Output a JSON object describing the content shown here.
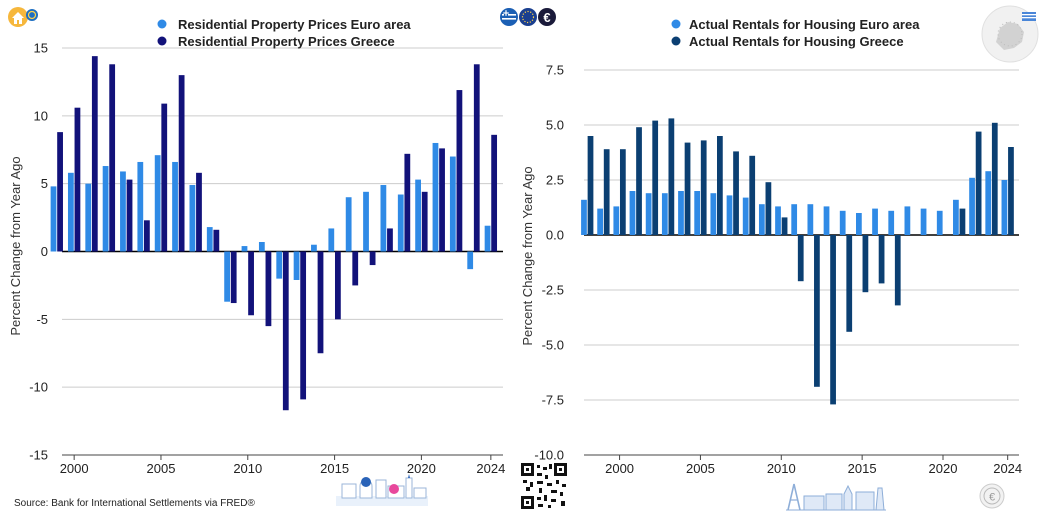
{
  "footer": {
    "source": "Source: Bank for International Settlements via FRED®"
  },
  "colors": {
    "light_blue": "#2f8ae6",
    "navy": "#12127a",
    "dark_blue": "#0b3f72",
    "grid": "#cccccc",
    "zero": "#000000"
  },
  "icons": [
    "house-price-icon",
    "euro-coin-icon",
    "greece-flag-icon",
    "eu-flag-icon",
    "euro-symbol-icon",
    "eu-map-icon",
    "qr-code-icon",
    "greek-village-illustration",
    "european-landmarks-illustration",
    "euro-stamp-icon"
  ],
  "chart_data": [
    {
      "type": "bar",
      "legend_position": "top-center",
      "grid": "horizontal",
      "ylabel": "Percent Change from Year Ago",
      "ylim": [
        -15,
        15
      ],
      "yticks": [
        15,
        10,
        5,
        0,
        -5,
        -10,
        -15
      ],
      "ytick_labels": [
        "15",
        "10",
        "5",
        "0",
        "-5",
        "-10",
        "-15"
      ],
      "xlim": [
        1999.3,
        2024.7
      ],
      "xticks": [
        2000,
        2005,
        2010,
        2015,
        2020,
        2024
      ],
      "xtick_labels": [
        "2000",
        "2005",
        "2010",
        "2015",
        "2020",
        "2024"
      ],
      "x": [
        1999,
        2000,
        2001,
        2002,
        2003,
        2004,
        2005,
        2006,
        2007,
        2008,
        2009,
        2010,
        2011,
        2012,
        2013,
        2014,
        2015,
        2016,
        2017,
        2018,
        2019,
        2020,
        2021,
        2022,
        2023,
        2024
      ],
      "series": [
        {
          "name": "Residential Property Prices Euro area",
          "color": "#2f8ae6",
          "values": [
            4.8,
            5.8,
            5.0,
            6.3,
            5.9,
            6.6,
            7.1,
            6.6,
            4.9,
            1.8,
            -3.7,
            0.4,
            0.7,
            -2.0,
            -2.1,
            0.5,
            1.7,
            4.0,
            4.4,
            4.9,
            4.2,
            5.3,
            8.0,
            7.0,
            -1.3,
            1.9
          ]
        },
        {
          "name": "Residential Property Prices Greece",
          "color": "#12127a",
          "values": [
            8.8,
            10.6,
            14.4,
            13.8,
            5.3,
            2.3,
            10.9,
            13.0,
            5.8,
            1.6,
            -3.8,
            -4.7,
            -5.5,
            -11.7,
            -10.9,
            -7.5,
            -5.0,
            -2.5,
            -1.0,
            1.7,
            7.2,
            4.4,
            7.6,
            11.9,
            13.8,
            8.6
          ]
        }
      ]
    },
    {
      "type": "bar",
      "legend_position": "top-center",
      "grid": "horizontal",
      "ylabel": "Percent Change from Year Ago",
      "ylim": [
        -10,
        8.5
      ],
      "yticks": [
        7.5,
        5.0,
        2.5,
        0.0,
        -2.5,
        -5.0,
        -7.5,
        -10.0
      ],
      "ytick_labels": [
        "7.5",
        "5.0",
        "2.5",
        "0.0",
        "-2.5",
        "-5.0",
        "-7.5",
        "-10.0"
      ],
      "xlim": [
        1997.8,
        2024.7
      ],
      "xticks": [
        2000,
        2005,
        2010,
        2015,
        2020,
        2024
      ],
      "xtick_labels": [
        "2000",
        "2005",
        "2010",
        "2015",
        "2020",
        "2024"
      ],
      "x": [
        1998,
        1999,
        2000,
        2001,
        2002,
        2003,
        2004,
        2005,
        2006,
        2007,
        2008,
        2009,
        2010,
        2011,
        2012,
        2013,
        2014,
        2015,
        2016,
        2017,
        2018,
        2019,
        2020,
        2021,
        2022,
        2023,
        2024
      ],
      "series": [
        {
          "name": "Actual Rentals for Housing Euro area",
          "color": "#2f8ae6",
          "values": [
            1.6,
            1.2,
            1.3,
            2.0,
            1.9,
            1.9,
            2.0,
            2.0,
            1.9,
            1.8,
            1.7,
            1.4,
            1.3,
            1.4,
            1.4,
            1.3,
            1.1,
            1.0,
            1.2,
            1.1,
            1.3,
            1.2,
            1.1,
            1.6,
            2.6,
            2.9,
            2.5
          ]
        },
        {
          "name": "Actual Rentals for Housing Greece",
          "color": "#0b3f72",
          "values": [
            4.5,
            3.9,
            3.9,
            4.9,
            5.2,
            5.3,
            4.2,
            4.3,
            4.5,
            3.8,
            3.6,
            2.4,
            0.8,
            -2.1,
            -6.9,
            -7.7,
            -4.4,
            -2.6,
            -2.2,
            -3.2,
            0.0,
            0.0,
            0.0,
            1.2,
            4.7,
            5.1,
            4.0
          ]
        }
      ]
    }
  ]
}
